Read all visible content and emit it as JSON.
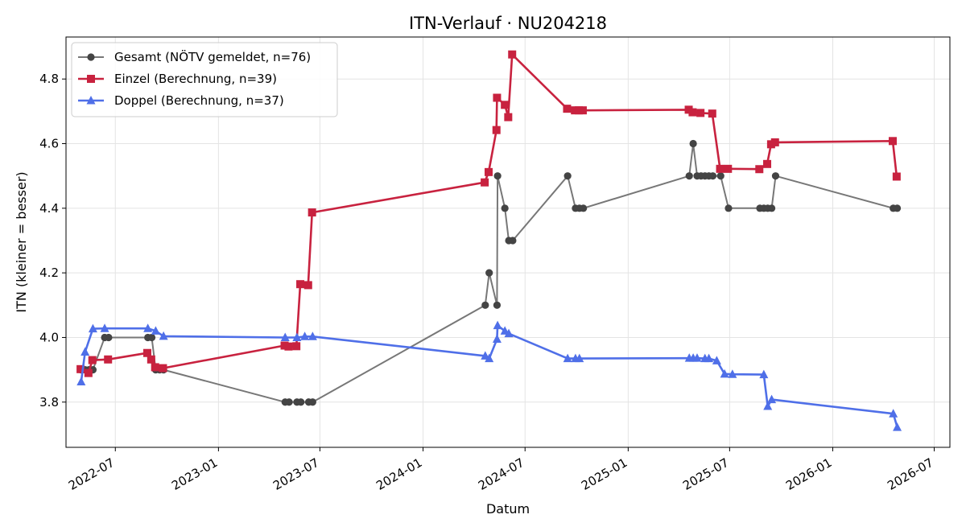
{
  "chart_data": {
    "type": "line",
    "title": "ITN-Verlauf · NU204218",
    "xlabel": "Datum",
    "ylabel": "ITN  (kleiner = besser)",
    "x_axis_type": "date",
    "xlim": [
      "2022-04-04",
      "2026-07-29"
    ],
    "ylim": [
      3.66,
      4.93
    ],
    "x_ticks": [
      "2022-07-01",
      "2023-01-01",
      "2023-07-01",
      "2024-01-01",
      "2024-07-01",
      "2025-01-01",
      "2025-07-01",
      "2026-01-01",
      "2026-07-01"
    ],
    "x_tick_labels": [
      "2022-07",
      "2023-01",
      "2023-07",
      "2024-01",
      "2024-07",
      "2025-01",
      "2025-07",
      "2026-01",
      "2026-07"
    ],
    "y_ticks": [
      3.8,
      4.0,
      4.2,
      4.4,
      4.6,
      4.8
    ],
    "y_tick_labels": [
      "3.8",
      "4.0",
      "4.2",
      "4.4",
      "4.6",
      "4.8"
    ],
    "grid": true,
    "legend_position": "top-left",
    "series": [
      {
        "name": "Gesamt (NÖTV gemeldet, n=76)",
        "color": "#777777",
        "marker_color": "#444444",
        "marker": "circle",
        "points": [
          [
            "2022-05-01",
            3.9
          ],
          [
            "2022-05-08",
            3.9
          ],
          [
            "2022-05-15",
            3.9
          ],
          [
            "2022-05-22",
            3.9
          ],
          [
            "2022-06-12",
            4.0
          ],
          [
            "2022-06-19",
            4.0
          ],
          [
            "2022-08-28",
            4.0
          ],
          [
            "2022-09-04",
            4.0
          ],
          [
            "2022-09-11",
            3.9
          ],
          [
            "2022-09-18",
            3.9
          ],
          [
            "2022-09-25",
            3.9
          ],
          [
            "2023-04-30",
            3.8
          ],
          [
            "2023-05-07",
            3.8
          ],
          [
            "2023-05-21",
            3.8
          ],
          [
            "2023-05-28",
            3.8
          ],
          [
            "2023-06-11",
            3.8
          ],
          [
            "2023-06-18",
            3.8
          ],
          [
            "2024-04-21",
            4.1
          ],
          [
            "2024-04-28",
            4.2
          ],
          [
            "2024-05-12",
            4.1
          ],
          [
            "2024-05-13",
            4.5
          ],
          [
            "2024-05-26",
            4.4
          ],
          [
            "2024-06-02",
            4.3
          ],
          [
            "2024-06-09",
            4.3
          ],
          [
            "2024-09-15",
            4.5
          ],
          [
            "2024-09-29",
            4.4
          ],
          [
            "2024-10-06",
            4.4
          ],
          [
            "2024-10-13",
            4.4
          ],
          [
            "2025-04-20",
            4.5
          ],
          [
            "2025-04-27",
            4.6
          ],
          [
            "2025-05-04",
            4.5
          ],
          [
            "2025-05-11",
            4.5
          ],
          [
            "2025-05-18",
            4.5
          ],
          [
            "2025-05-25",
            4.5
          ],
          [
            "2025-06-01",
            4.5
          ],
          [
            "2025-06-15",
            4.5
          ],
          [
            "2025-06-29",
            4.4
          ],
          [
            "2025-08-24",
            4.4
          ],
          [
            "2025-08-31",
            4.4
          ],
          [
            "2025-09-07",
            4.4
          ],
          [
            "2025-09-14",
            4.4
          ],
          [
            "2025-09-21",
            4.5
          ],
          [
            "2026-04-19",
            4.4
          ],
          [
            "2026-04-26",
            4.4
          ]
        ]
      },
      {
        "name": "Einzel (Berechnung, n=39)",
        "color": "#c8223f",
        "marker_color": "#c8223f",
        "marker": "square",
        "points": [
          [
            "2022-04-30",
            3.902
          ],
          [
            "2022-05-14",
            3.89
          ],
          [
            "2022-05-21",
            3.93
          ],
          [
            "2022-06-18",
            3.932
          ],
          [
            "2022-08-27",
            3.952
          ],
          [
            "2022-09-03",
            3.932
          ],
          [
            "2022-09-10",
            3.908
          ],
          [
            "2022-09-24",
            3.905
          ],
          [
            "2023-04-29",
            3.975
          ],
          [
            "2023-05-06",
            3.972
          ],
          [
            "2023-05-20",
            3.973
          ],
          [
            "2023-05-27",
            4.165
          ],
          [
            "2023-06-10",
            4.162
          ],
          [
            "2023-06-17",
            4.387
          ],
          [
            "2024-04-20",
            4.48
          ],
          [
            "2024-04-27",
            4.512
          ],
          [
            "2024-05-11",
            4.642
          ],
          [
            "2024-05-12",
            4.742
          ],
          [
            "2024-05-26",
            4.72
          ],
          [
            "2024-06-01",
            4.682
          ],
          [
            "2024-06-08",
            4.876
          ],
          [
            "2024-09-14",
            4.708
          ],
          [
            "2024-09-28",
            4.703
          ],
          [
            "2024-10-05",
            4.703
          ],
          [
            "2024-10-12",
            4.703
          ],
          [
            "2025-04-19",
            4.705
          ],
          [
            "2025-04-26",
            4.697
          ],
          [
            "2025-05-10",
            4.695
          ],
          [
            "2025-05-31",
            4.693
          ],
          [
            "2025-06-14",
            4.522
          ],
          [
            "2025-06-28",
            4.522
          ],
          [
            "2025-08-23",
            4.521
          ],
          [
            "2025-09-06",
            4.537
          ],
          [
            "2025-09-13",
            4.598
          ],
          [
            "2025-09-20",
            4.604
          ],
          [
            "2026-04-18",
            4.608
          ],
          [
            "2026-04-25",
            4.498
          ]
        ]
      },
      {
        "name": "Doppel (Berechnung, n=37)",
        "color": "#4f6fe8",
        "marker_color": "#4f6fe8",
        "marker": "triangle",
        "points": [
          [
            "2022-05-01",
            3.863
          ],
          [
            "2022-05-08",
            3.955
          ],
          [
            "2022-05-22",
            4.027
          ],
          [
            "2022-06-12",
            4.028
          ],
          [
            "2022-08-28",
            4.028
          ],
          [
            "2022-09-11",
            4.02
          ],
          [
            "2022-09-25",
            4.004
          ],
          [
            "2023-04-30",
            4.0
          ],
          [
            "2023-05-21",
            4.0
          ],
          [
            "2023-06-04",
            4.003
          ],
          [
            "2023-06-18",
            4.003
          ],
          [
            "2024-04-21",
            3.943
          ],
          [
            "2024-04-28",
            3.935
          ],
          [
            "2024-05-12",
            3.995
          ],
          [
            "2024-05-13",
            4.037
          ],
          [
            "2024-05-26",
            4.02
          ],
          [
            "2024-06-02",
            4.012
          ],
          [
            "2024-09-15",
            3.935
          ],
          [
            "2024-09-29",
            3.935
          ],
          [
            "2024-10-06",
            3.935
          ],
          [
            "2025-04-20",
            3.936
          ],
          [
            "2025-04-27",
            3.936
          ],
          [
            "2025-05-04",
            3.936
          ],
          [
            "2025-05-18",
            3.935
          ],
          [
            "2025-05-25",
            3.935
          ],
          [
            "2025-06-08",
            3.928
          ],
          [
            "2025-06-22",
            3.887
          ],
          [
            "2025-07-06",
            3.886
          ],
          [
            "2025-08-31",
            3.885
          ],
          [
            "2025-09-07",
            3.787
          ],
          [
            "2025-09-14",
            3.808
          ],
          [
            "2026-04-19",
            3.764
          ],
          [
            "2026-04-26",
            3.722
          ]
        ]
      }
    ]
  }
}
